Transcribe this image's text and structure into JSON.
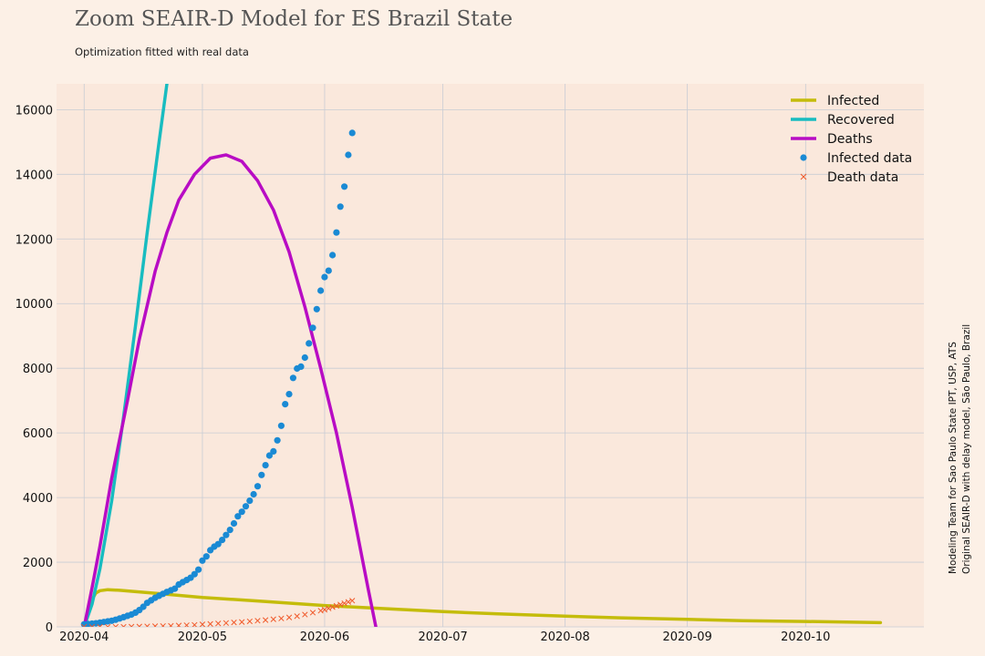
{
  "title": "Zoom SEAIR-D Model for ES Brazil State",
  "subtitle": "Optimization fitted with real data",
  "side_note": {
    "line1": "Modeling Team for Sao Paulo State IPT, USP, ATS",
    "line2": "Original SEAIR-D with delay model, São Paulo, Brazil"
  },
  "colors": {
    "background": "#fcf0e6",
    "plot_background": "#fae8dc",
    "grid": "#c8ccd4",
    "infected": "#c4bc0b",
    "recovered": "#18bcc0",
    "deaths": "#b80cc4",
    "infected_data": "#1a8ad4",
    "death_data": "#f0592a"
  },
  "chart_data": {
    "type": "line",
    "title": "Zoom SEAIR-D Model for ES Brazil State",
    "subtitle": "Optimization fitted with real data",
    "xlabel": "",
    "ylabel": "",
    "x_axis": "date",
    "xlim": [
      "2020-03-25",
      "2020-10-31"
    ],
    "ylim": [
      0,
      16800
    ],
    "x_ticks": [
      "2020-04",
      "2020-05",
      "2020-06",
      "2020-07",
      "2020-08",
      "2020-09",
      "2020-10"
    ],
    "y_ticks": [
      "0",
      "2000",
      "4000",
      "6000",
      "8000",
      "10000",
      "12000",
      "14000",
      "16000"
    ],
    "grid": true,
    "legend_position": "top-right",
    "series": [
      {
        "name": "Infected",
        "style": "line",
        "points": [
          [
            "2020-04-01",
            0
          ],
          [
            "2020-04-02",
            500
          ],
          [
            "2020-04-03",
            850
          ],
          [
            "2020-04-04",
            1050
          ],
          [
            "2020-04-05",
            1120
          ],
          [
            "2020-04-07",
            1150
          ],
          [
            "2020-04-10",
            1130
          ],
          [
            "2020-04-20",
            1030
          ],
          [
            "2020-05-01",
            910
          ],
          [
            "2020-05-15",
            800
          ],
          [
            "2020-06-01",
            660
          ],
          [
            "2020-06-15",
            570
          ],
          [
            "2020-07-01",
            470
          ],
          [
            "2020-07-15",
            400
          ],
          [
            "2020-08-01",
            330
          ],
          [
            "2020-08-15",
            280
          ],
          [
            "2020-09-01",
            230
          ],
          [
            "2020-09-15",
            190
          ],
          [
            "2020-10-01",
            165
          ],
          [
            "2020-10-15",
            140
          ],
          [
            "2020-10-20",
            130
          ]
        ]
      },
      {
        "name": "Recovered",
        "style": "line",
        "points": [
          [
            "2020-04-01",
            0
          ],
          [
            "2020-04-03",
            700
          ],
          [
            "2020-04-05",
            1800
          ],
          [
            "2020-04-08",
            3900
          ],
          [
            "2020-04-11",
            6500
          ],
          [
            "2020-04-14",
            9300
          ],
          [
            "2020-04-17",
            12200
          ],
          [
            "2020-04-20",
            15000
          ],
          [
            "2020-04-22",
            16800
          ]
        ]
      },
      {
        "name": "Deaths",
        "style": "line",
        "points": [
          [
            "2020-04-01",
            0
          ],
          [
            "2020-04-03",
            1200
          ],
          [
            "2020-04-05",
            2500
          ],
          [
            "2020-04-08",
            4600
          ],
          [
            "2020-04-12",
            7000
          ],
          [
            "2020-04-15",
            8900
          ],
          [
            "2020-04-19",
            11000
          ],
          [
            "2020-04-22",
            12200
          ],
          [
            "2020-04-25",
            13200
          ],
          [
            "2020-04-29",
            14000
          ],
          [
            "2020-05-03",
            14500
          ],
          [
            "2020-05-07",
            14600
          ],
          [
            "2020-05-11",
            14400
          ],
          [
            "2020-05-15",
            13800
          ],
          [
            "2020-05-19",
            12900
          ],
          [
            "2020-05-23",
            11600
          ],
          [
            "2020-05-27",
            9900
          ],
          [
            "2020-05-31",
            8000
          ],
          [
            "2020-06-04",
            6000
          ],
          [
            "2020-06-08",
            3700
          ],
          [
            "2020-06-12",
            1200
          ],
          [
            "2020-06-14",
            0
          ]
        ]
      },
      {
        "name": "Infected data",
        "style": "markers",
        "marker": "circle",
        "points": [
          [
            "2020-04-01",
            80
          ],
          [
            "2020-04-02",
            90
          ],
          [
            "2020-04-03",
            100
          ],
          [
            "2020-04-04",
            110
          ],
          [
            "2020-04-05",
            130
          ],
          [
            "2020-04-06",
            150
          ],
          [
            "2020-04-07",
            170
          ],
          [
            "2020-04-08",
            190
          ],
          [
            "2020-04-09",
            220
          ],
          [
            "2020-04-10",
            260
          ],
          [
            "2020-04-11",
            300
          ],
          [
            "2020-04-12",
            340
          ],
          [
            "2020-04-13",
            380
          ],
          [
            "2020-04-14",
            440
          ],
          [
            "2020-04-15",
            520
          ],
          [
            "2020-04-16",
            620
          ],
          [
            "2020-04-17",
            740
          ],
          [
            "2020-04-18",
            820
          ],
          [
            "2020-04-19",
            900
          ],
          [
            "2020-04-20",
            960
          ],
          [
            "2020-04-21",
            1020
          ],
          [
            "2020-04-22",
            1080
          ],
          [
            "2020-04-23",
            1130
          ],
          [
            "2020-04-24",
            1180
          ],
          [
            "2020-04-25",
            1310
          ],
          [
            "2020-04-26",
            1380
          ],
          [
            "2020-04-27",
            1450
          ],
          [
            "2020-04-28",
            1520
          ],
          [
            "2020-04-29",
            1630
          ],
          [
            "2020-04-30",
            1770
          ],
          [
            "2020-05-01",
            2050
          ],
          [
            "2020-05-02",
            2180
          ],
          [
            "2020-05-03",
            2370
          ],
          [
            "2020-05-04",
            2480
          ],
          [
            "2020-05-05",
            2560
          ],
          [
            "2020-05-06",
            2690
          ],
          [
            "2020-05-07",
            2840
          ],
          [
            "2020-05-08",
            3000
          ],
          [
            "2020-05-09",
            3200
          ],
          [
            "2020-05-10",
            3420
          ],
          [
            "2020-05-11",
            3560
          ],
          [
            "2020-05-12",
            3730
          ],
          [
            "2020-05-13",
            3900
          ],
          [
            "2020-05-14",
            4100
          ],
          [
            "2020-05-15",
            4350
          ],
          [
            "2020-05-16",
            4700
          ],
          [
            "2020-05-17",
            5000
          ],
          [
            "2020-05-18",
            5300
          ],
          [
            "2020-05-19",
            5430
          ],
          [
            "2020-05-20",
            5770
          ],
          [
            "2020-05-21",
            6220
          ],
          [
            "2020-05-22",
            6890
          ],
          [
            "2020-05-23",
            7200
          ],
          [
            "2020-05-24",
            7700
          ],
          [
            "2020-05-25",
            7990
          ],
          [
            "2020-05-26",
            8050
          ],
          [
            "2020-05-27",
            8330
          ],
          [
            "2020-05-28",
            8770
          ],
          [
            "2020-05-29",
            9250
          ],
          [
            "2020-05-30",
            9830
          ],
          [
            "2020-05-31",
            10400
          ],
          [
            "2020-06-01",
            10820
          ],
          [
            "2020-06-02",
            11020
          ],
          [
            "2020-06-03",
            11500
          ],
          [
            "2020-06-04",
            12200
          ],
          [
            "2020-06-05",
            13000
          ],
          [
            "2020-06-06",
            13620
          ],
          [
            "2020-06-07",
            14600
          ],
          [
            "2020-06-08",
            15280
          ]
        ]
      },
      {
        "name": "Death data",
        "style": "markers",
        "marker": "x",
        "points": [
          [
            "2020-04-01",
            0
          ],
          [
            "2020-04-03",
            0
          ],
          [
            "2020-04-05",
            0
          ],
          [
            "2020-04-07",
            0
          ],
          [
            "2020-04-09",
            0
          ],
          [
            "2020-04-11",
            0
          ],
          [
            "2020-04-13",
            5
          ],
          [
            "2020-04-15",
            10
          ],
          [
            "2020-04-17",
            15
          ],
          [
            "2020-04-19",
            20
          ],
          [
            "2020-04-21",
            25
          ],
          [
            "2020-04-23",
            30
          ],
          [
            "2020-04-25",
            40
          ],
          [
            "2020-04-27",
            50
          ],
          [
            "2020-04-29",
            60
          ],
          [
            "2020-05-01",
            75
          ],
          [
            "2020-05-03",
            90
          ],
          [
            "2020-05-05",
            105
          ],
          [
            "2020-05-07",
            120
          ],
          [
            "2020-05-09",
            135
          ],
          [
            "2020-05-11",
            150
          ],
          [
            "2020-05-13",
            170
          ],
          [
            "2020-05-15",
            190
          ],
          [
            "2020-05-17",
            210
          ],
          [
            "2020-05-19",
            235
          ],
          [
            "2020-05-21",
            260
          ],
          [
            "2020-05-23",
            290
          ],
          [
            "2020-05-25",
            330
          ],
          [
            "2020-05-27",
            380
          ],
          [
            "2020-05-29",
            440
          ],
          [
            "2020-05-31",
            500
          ],
          [
            "2020-06-01",
            530
          ],
          [
            "2020-06-02",
            570
          ],
          [
            "2020-06-03",
            610
          ],
          [
            "2020-06-04",
            650
          ],
          [
            "2020-06-05",
            690
          ],
          [
            "2020-06-06",
            730
          ],
          [
            "2020-06-07",
            770
          ],
          [
            "2020-06-08",
            810
          ]
        ]
      }
    ]
  }
}
